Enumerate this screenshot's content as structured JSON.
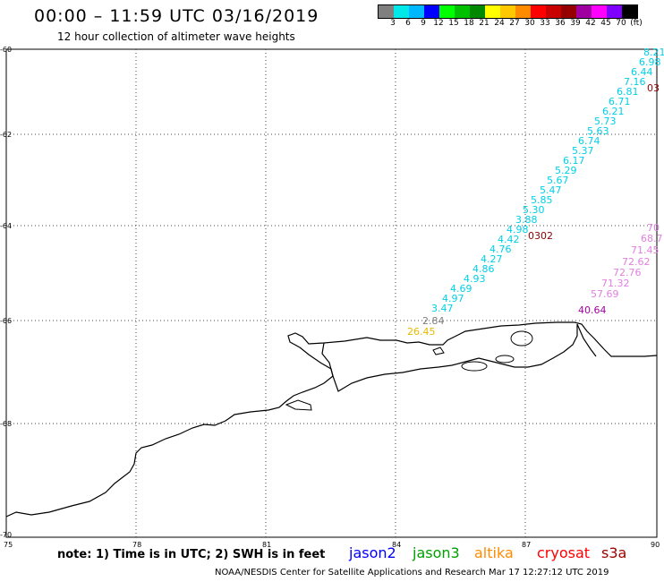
{
  "header": {
    "title": "00:00 – 11:59 UTC 03/16/2019",
    "subtitle": "12 hour collection of altimeter wave heights"
  },
  "legend": {
    "colors": [
      "#7f7f7f",
      "#00e8e8",
      "#00b8ff",
      "#0000ff",
      "#00ff00",
      "#00c000",
      "#008800",
      "#ffff00",
      "#ffc800",
      "#ff8c00",
      "#ff0000",
      "#c80000",
      "#960000",
      "#a000a0",
      "#ff00ff",
      "#7f00ff",
      "#000000"
    ],
    "labels": [
      "3",
      "6",
      "9",
      "12",
      "15",
      "18",
      "21",
      "24",
      "27",
      "30",
      "33",
      "36",
      "39",
      "42",
      "45",
      "70",
      "(ft)"
    ]
  },
  "axes": {
    "lat_labels": [
      "-60",
      "-62",
      "-64",
      "-66",
      "-68",
      "-70"
    ],
    "lon_labels": [
      "75",
      "78",
      "81",
      "84",
      "87",
      "90"
    ]
  },
  "wave_labels": {
    "cyan_track": [
      "8.21",
      "6.98",
      "6.44",
      "7.16",
      "6.81",
      "6.71",
      "6.21",
      "5.73",
      "5.63",
      "6.74",
      "5.37",
      "6.17",
      "5.29",
      "5.67",
      "5.47",
      "5.85",
      "5.30",
      "3.88",
      "4.98",
      "4.42",
      "4.76",
      "4.27",
      "4.86",
      "4.93",
      "4.69",
      "4.97",
      "3.47"
    ],
    "gray": "2.84",
    "orange": "26.45",
    "darkred_top": "03",
    "darkred_mid": "0302",
    "pink_track": [
      "70",
      "68.7",
      "71.45",
      "72.62",
      "72.76",
      "71.32",
      "57.69"
    ],
    "purple": "40.64"
  },
  "note": "note: 1) Time is in UTC; 2) SWH is in feet",
  "satellites": [
    {
      "name": "jason2",
      "color": "#0000ff"
    },
    {
      "name": "jason3",
      "color": "#00a000"
    },
    {
      "name": "altika",
      "color": "#ff8c00"
    },
    {
      "name": "cryosat",
      "color": "#ff0000"
    },
    {
      "name": "s3a",
      "color": "#a00000"
    }
  ],
  "footer": "NOAA/NESDIS Center for Satellite Applications and Research    Mar 17 12:27:12 UTC 2019"
}
